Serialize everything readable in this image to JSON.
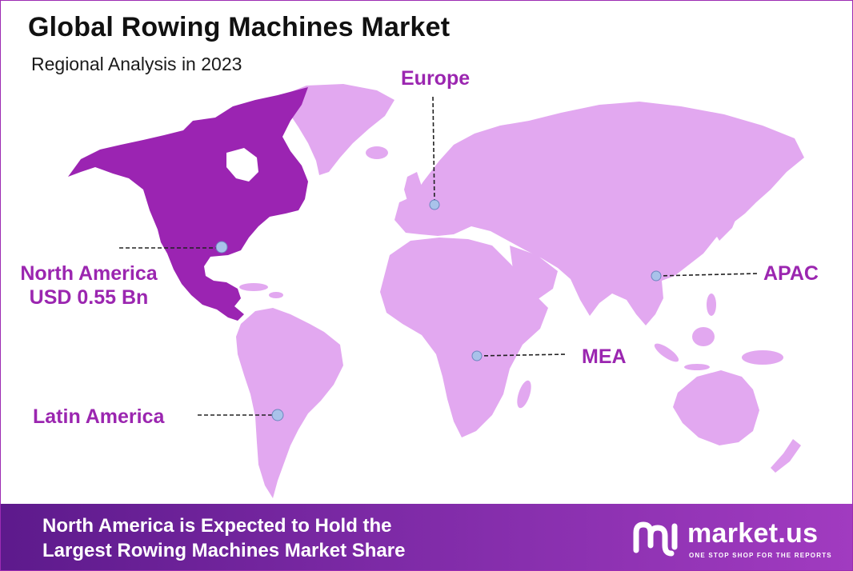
{
  "header": {
    "title": "Global Rowing Machines Market",
    "subtitle": "Regional Analysis in 2023"
  },
  "regions": {
    "europe": {
      "label": "Europe"
    },
    "north_america": {
      "label": "North America",
      "value": "USD 0.55 Bn"
    },
    "apac": {
      "label": "APAC"
    },
    "mea": {
      "label": "MEA"
    },
    "latin_america": {
      "label": "Latin America"
    }
  },
  "highlight_region": "north_america",
  "footer": {
    "line1": "North America is Expected to Hold the",
    "line2": "Largest Rowing Machines Market Share"
  },
  "brand": {
    "logo_icon": "market-us-logo-icon",
    "name": "market.us",
    "tagline": "ONE STOP SHOP FOR THE REPORTS"
  },
  "colors": {
    "highlight": "#9b24b2",
    "land": "#e2a8f0",
    "label": "#9b26b0",
    "marker": "#a9c2ea",
    "footer_start": "#5d1a8c",
    "footer_end": "#a13bc0"
  }
}
